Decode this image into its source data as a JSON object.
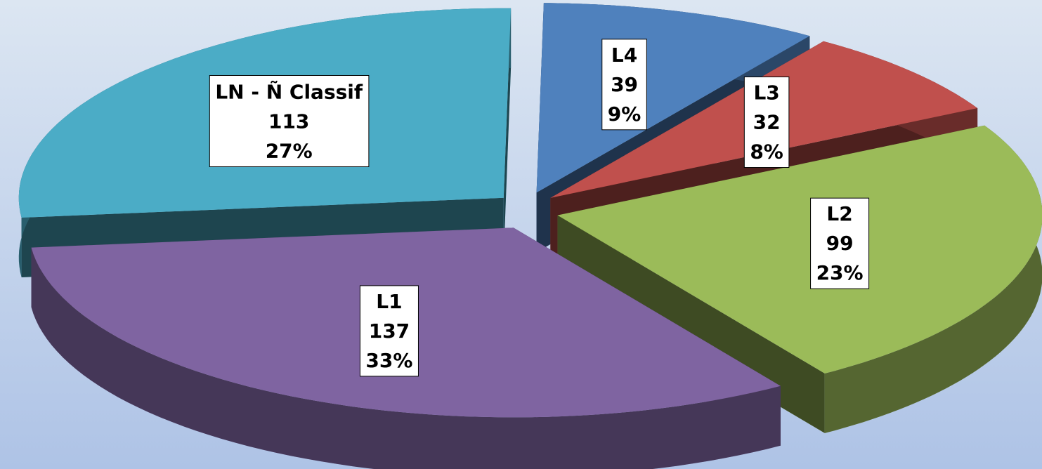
{
  "chart_data": {
    "type": "pie",
    "categories": [
      "L1",
      "L2",
      "L3",
      "L4",
      "LN - Ñ Classif"
    ],
    "values": [
      137,
      99,
      32,
      39,
      113
    ],
    "percent_labels": [
      "33%",
      "23%",
      "8%",
      "9%",
      "27%"
    ],
    "colors": [
      "#7f64a1",
      "#9bbb59",
      "#c0504d",
      "#4f81bd",
      "#4bacc6"
    ],
    "three_d": true,
    "exploded": true
  }
}
